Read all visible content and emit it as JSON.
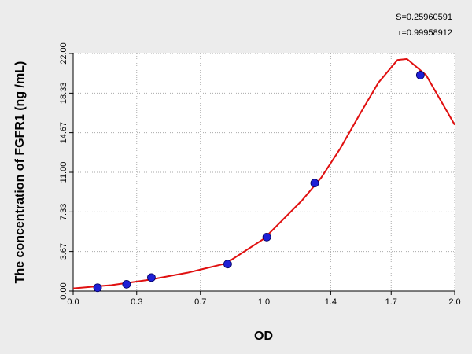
{
  "chart_data": {
    "type": "scatter",
    "annotations": [
      "S=0.25960591",
      "r=0.99958912"
    ],
    "x_label": "OD",
    "y_label": "The concentration of FGFR1 (ng /mL)",
    "xlim": [
      0,
      2
    ],
    "ylim": [
      0,
      22
    ],
    "xticks": [
      {
        "value": 0,
        "label": "0.0"
      },
      {
        "value": 0.333,
        "label": "0.3"
      },
      {
        "value": 0.667,
        "label": "0.7"
      },
      {
        "value": 1,
        "label": "1.0"
      },
      {
        "value": 1.35,
        "label": "1.4"
      },
      {
        "value": 1.667,
        "label": "1.7"
      },
      {
        "value": 2,
        "label": "2.0"
      }
    ],
    "yticks": [
      {
        "value": 0,
        "label": "0.00"
      },
      {
        "value": 3.67,
        "label": "3.67"
      },
      {
        "value": 7.33,
        "label": "7.33"
      },
      {
        "value": 11,
        "label": "11.00"
      },
      {
        "value": 14.67,
        "label": "14.67"
      },
      {
        "value": 18.33,
        "label": "18.33"
      },
      {
        "value": 22,
        "label": "22.00"
      }
    ],
    "grid": true,
    "points": {
      "color": "#1f1fd6",
      "x": [
        0.128,
        0.28,
        0.41,
        0.81,
        1.015,
        1.266,
        1.82
      ],
      "values": [
        0.31,
        0.63,
        1.25,
        2.5,
        5,
        10,
        20
      ]
    },
    "curve": {
      "color": "#e01010",
      "x": [
        0,
        0.2,
        0.4,
        0.6,
        0.8,
        1.0,
        1.2,
        1.3,
        1.4,
        1.5,
        1.6,
        1.7,
        1.75,
        1.85,
        2.0
      ],
      "values": [
        0.25,
        0.55,
        1.05,
        1.7,
        2.55,
        4.85,
        8.4,
        10.5,
        13.2,
        16.3,
        19.3,
        21.4,
        21.5,
        20.0,
        15.4
      ]
    }
  }
}
